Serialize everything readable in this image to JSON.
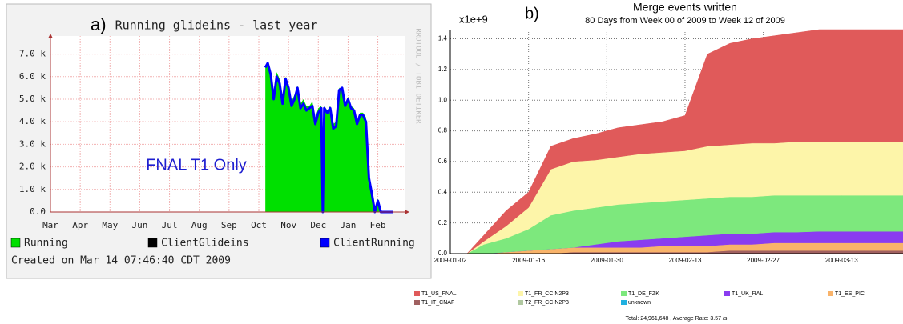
{
  "chart_data": [
    {
      "type": "line",
      "label": "a)",
      "title": "Running glideins - last year",
      "annotation": "FNAL T1 Only",
      "watermark": "RRDTOOL / TOBI OETIKER",
      "footer": "Created on Mar 14 07:46:40 CDT 2009",
      "xlim": [
        0,
        11.9
      ],
      "xticks": [
        {
          "value": 0,
          "label": "Mar"
        },
        {
          "value": 1,
          "label": "Apr"
        },
        {
          "value": 2,
          "label": "May"
        },
        {
          "value": 3,
          "label": "Jun"
        },
        {
          "value": 4,
          "label": "Jul"
        },
        {
          "value": 5,
          "label": "Aug"
        },
        {
          "value": 6,
          "label": "Sep"
        },
        {
          "value": 7,
          "label": "Oct"
        },
        {
          "value": 8,
          "label": "Nov"
        },
        {
          "value": 9,
          "label": "Dec"
        },
        {
          "value": 10,
          "label": "Jan"
        },
        {
          "value": 11,
          "label": "Feb"
        }
      ],
      "ylim": [
        0,
        7800
      ],
      "yticks": [
        {
          "value": 0,
          "label": "0.0"
        },
        {
          "value": 1000,
          "label": "1.0 k"
        },
        {
          "value": 2000,
          "label": "2.0 k"
        },
        {
          "value": 3000,
          "label": "3.0 k"
        },
        {
          "value": 4000,
          "label": "4.0 k"
        },
        {
          "value": 5000,
          "label": "5.0 k"
        },
        {
          "value": 6000,
          "label": "6.0 k"
        },
        {
          "value": 7000,
          "label": "7.0 k"
        }
      ],
      "grid": true,
      "x": [
        7.22,
        7.3,
        7.4,
        7.5,
        7.6,
        7.7,
        7.8,
        7.9,
        8.0,
        8.1,
        8.2,
        8.3,
        8.4,
        8.5,
        8.6,
        8.7,
        8.8,
        8.9,
        9.0,
        9.1,
        9.15,
        9.2,
        9.3,
        9.4,
        9.5,
        9.6,
        9.7,
        9.8,
        9.9,
        10.0,
        10.1,
        10.2,
        10.3,
        10.4,
        10.5,
        10.6,
        10.7,
        10.8,
        10.9,
        11.0,
        11.1,
        11.3,
        11.5
      ],
      "series": [
        {
          "name": "Running",
          "color": "#00e000",
          "style": "area",
          "values": [
            6500,
            6600,
            6300,
            5300,
            6200,
            5900,
            5000,
            6000,
            5600,
            4900,
            5200,
            5600,
            4800,
            5000,
            4700,
            4700,
            4900,
            4200,
            4600,
            4700,
            0,
            4700,
            4500,
            4700,
            3900,
            4000,
            5500,
            5500,
            4800,
            5100,
            4700,
            4600,
            4000,
            4400,
            4400,
            4200,
            1700,
            900,
            0,
            600,
            0,
            0,
            0
          ]
        },
        {
          "name": "ClientGlideins",
          "color": "#000000",
          "style": "line",
          "values": [
            null,
            null,
            null,
            null,
            null,
            null,
            null,
            null,
            null,
            null,
            null,
            null,
            null,
            null,
            null,
            null,
            null,
            null,
            null,
            null,
            null,
            null,
            null,
            null,
            null,
            null,
            null,
            null,
            null,
            null,
            null,
            null,
            null,
            null,
            null,
            null,
            null,
            null,
            null,
            null,
            null,
            null,
            null
          ]
        },
        {
          "name": "ClientRunning",
          "color": "#0000ff",
          "style": "line",
          "values": [
            6400,
            6600,
            6100,
            5000,
            6000,
            5700,
            4800,
            5900,
            5500,
            4700,
            5000,
            5500,
            4600,
            4800,
            4500,
            4600,
            4700,
            3900,
            4400,
            4600,
            0,
            4600,
            4400,
            4600,
            3700,
            3800,
            5400,
            5500,
            4700,
            5000,
            4600,
            4500,
            3900,
            4300,
            4300,
            4000,
            1500,
            800,
            0,
            500,
            0,
            0,
            0
          ]
        }
      ]
    },
    {
      "type": "stacked_area",
      "label": "b)",
      "title": "Merge events written",
      "subtitle": "80 Days from Week 00 of 2009 to Week 12 of 2009",
      "y_multiplier": "x1e+9",
      "footer": "Total: 24,961,648 , Average Rate: 3.57 /s",
      "xlim": [
        "2009-01-02",
        "2009-03-24"
      ],
      "xticks": [
        "2009-01-02",
        "2009-01-16",
        "2009-01-30",
        "2009-02-13",
        "2009-02-27",
        "2009-03-13"
      ],
      "ylim": [
        0,
        1.46
      ],
      "yticks": [
        {
          "value": 0,
          "label": "0.0"
        },
        0.2,
        0.4,
        0.6,
        0.8,
        {
          "value": 1,
          "label": "1.0"
        },
        1.2,
        1.4
      ],
      "grid": true,
      "x": [
        "2009-01-02",
        "2009-01-05",
        "2009-01-08",
        "2009-01-12",
        "2009-01-16",
        "2009-01-20",
        "2009-01-24",
        "2009-01-28",
        "2009-02-01",
        "2009-02-05",
        "2009-02-09",
        "2009-02-13",
        "2009-02-17",
        "2009-02-21",
        "2009-02-25",
        "2009-03-01",
        "2009-03-05",
        "2009-03-09",
        "2009-03-13",
        "2009-03-17",
        "2009-03-24"
      ],
      "series": [
        {
          "name": "T1_US_FNAL",
          "color": "#e05a5a",
          "values": [
            0,
            0,
            0.04,
            0.1,
            0.1,
            0.15,
            0.15,
            0.17,
            0.19,
            0.19,
            0.2,
            0.23,
            0.6,
            0.66,
            0.68,
            0.7,
            0.71,
            0.73,
            0.73,
            0.73,
            0.73
          ]
        },
        {
          "name": "T1_FR_CCIN2P3",
          "color": "#fdf5a9",
          "values": [
            0,
            0,
            0.02,
            0.08,
            0.14,
            0.3,
            0.32,
            0.31,
            0.31,
            0.32,
            0.32,
            0.32,
            0.34,
            0.34,
            0.35,
            0.34,
            0.35,
            0.35,
            0.35,
            0.35,
            0.35
          ]
        },
        {
          "name": "T1_DE_FZK",
          "color": "#7de87d",
          "values": [
            0,
            0,
            0.06,
            0.09,
            0.14,
            0.22,
            0.24,
            0.24,
            0.24,
            0.24,
            0.24,
            0.24,
            0.24,
            0.24,
            0.24,
            0.24,
            0.24,
            0.235,
            0.235,
            0.235,
            0.235
          ]
        },
        {
          "name": "T1_UK_RAL",
          "color": "#8a3cf0",
          "values": [
            0,
            0,
            0,
            0,
            0,
            0,
            0,
            0.02,
            0.04,
            0.05,
            0.05,
            0.06,
            0.07,
            0.07,
            0.07,
            0.07,
            0.07,
            0.075,
            0.075,
            0.075,
            0.075
          ]
        },
        {
          "name": "T1_ES_PIC",
          "color": "#f9b36a",
          "values": [
            0,
            0,
            0,
            0.01,
            0.02,
            0.03,
            0.03,
            0.03,
            0.03,
            0.03,
            0.04,
            0.04,
            0.04,
            0.04,
            0.04,
            0.05,
            0.05,
            0.05,
            0.05,
            0.05,
            0.05
          ]
        },
        {
          "name": "T1_IT_CNAF",
          "color": "#a06060",
          "values": [
            0,
            0,
            0,
            0,
            0,
            0,
            0.01,
            0.01,
            0.01,
            0.01,
            0.01,
            0.01,
            0.01,
            0.02,
            0.02,
            0.02,
            0.02,
            0.02,
            0.02,
            0.02,
            0.02
          ]
        },
        {
          "name": "T2_FR_CCIN2P3",
          "color": "#b0c8a0",
          "values": [
            0,
            0,
            0,
            0,
            0,
            0,
            0,
            0,
            0,
            0,
            0,
            0,
            0,
            0,
            0,
            0,
            0,
            0,
            0,
            0,
            0
          ]
        },
        {
          "name": "unknown",
          "color": "#20b0e0",
          "values": [
            0,
            0,
            0,
            0,
            0,
            0,
            0,
            0,
            0,
            0,
            0,
            0,
            0,
            0,
            0,
            0,
            0,
            0,
            0,
            0,
            0
          ]
        }
      ]
    }
  ]
}
